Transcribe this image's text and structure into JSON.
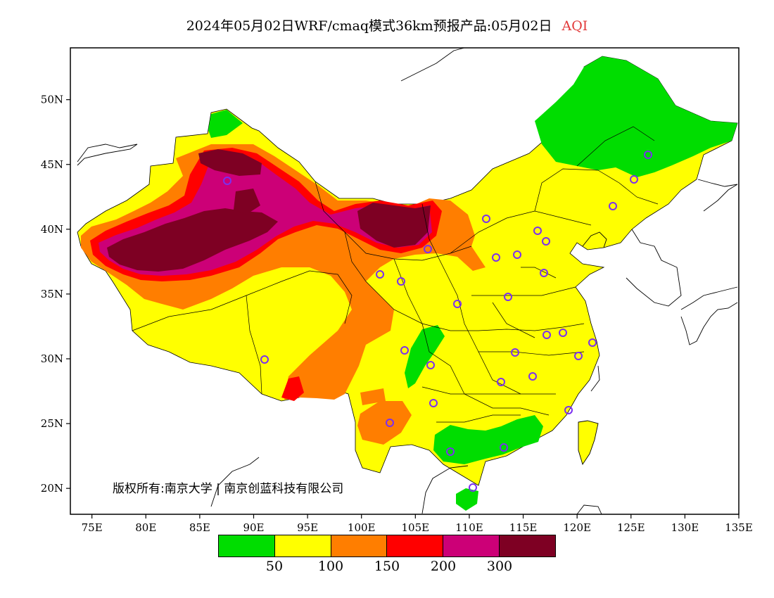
{
  "title": {
    "main": "2024年05月02日WRF/cmaq模式36km预报产品:05月02日",
    "variable": "AQI",
    "variable_color": "#e23a3a"
  },
  "map": {
    "lon_range": [
      73,
      135
    ],
    "lat_range": [
      18,
      54
    ],
    "lat_labels": [
      "20N",
      "25N",
      "30N",
      "35N",
      "40N",
      "45N",
      "50N"
    ],
    "lon_labels": [
      "75E",
      "80E",
      "85E",
      "90E",
      "95E",
      "100E",
      "105E",
      "110E",
      "115E",
      "120E",
      "125E",
      "130E",
      "135E"
    ]
  },
  "copyright": "版权所有:南京大学 | 南京创蓝科技有限公司",
  "legend": {
    "colors": [
      "#00dd00",
      "#ffff00",
      "#ff7e00",
      "#ff0000",
      "#cc0077",
      "#7e0023"
    ],
    "ticks": [
      "50",
      "100",
      "150",
      "200",
      "300"
    ]
  },
  "stations_color": "#7b2ff0"
}
